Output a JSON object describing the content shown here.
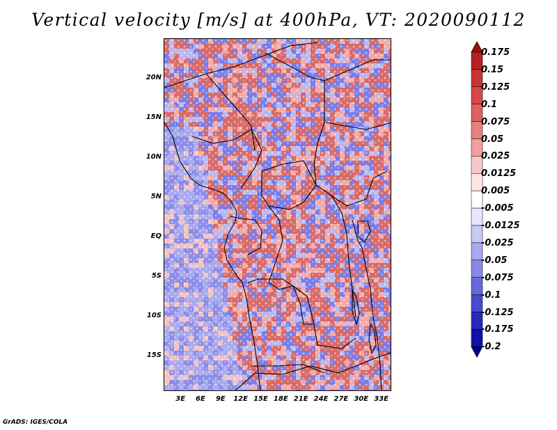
{
  "title": "Vertical velocity [m/s] at 400hPa, VT: 2020090112",
  "credit": "GrADS: IGES/COLA",
  "map": {
    "lat_labels": [
      "20N",
      "15N",
      "10N",
      "5N",
      "EQ",
      "5S",
      "10S",
      "15S"
    ],
    "lat_values": [
      20,
      15,
      10,
      5,
      0,
      -5,
      -10,
      -15
    ],
    "lon_labels": [
      "3E",
      "6E",
      "9E",
      "12E",
      "15E",
      "18E",
      "21E",
      "24E",
      "27E",
      "30E",
      "33E"
    ],
    "lon_values": [
      3,
      6,
      9,
      12,
      15,
      18,
      21,
      24,
      27,
      30,
      33
    ],
    "lon_range": [
      0.5,
      34.5
    ],
    "lat_range": [
      -19.5,
      25
    ]
  },
  "colorbar": {
    "labels": [
      "0.175",
      "0.15",
      "0.125",
      "0.1",
      "0.075",
      "0.05",
      "0.025",
      "0.0125",
      "0.005",
      "-0.005",
      "-0.0125",
      "-0.025",
      "-0.05",
      "-0.075",
      "-0.1",
      "-0.125",
      "-0.175",
      "-0.2"
    ],
    "colors": [
      "#a01010",
      "#b82020",
      "#c83434",
      "#d84848",
      "#e06060",
      "#e88080",
      "#f0a0a0",
      "#f8c8c8",
      "#fde6e6",
      "#ffffff",
      "#e6e6fc",
      "#c8c8f6",
      "#a8a8f0",
      "#8888e8",
      "#6868dc",
      "#4848d0",
      "#2828c0",
      "#1010a8",
      "#000090"
    ]
  },
  "colors": {
    "land_pos": "#d86a6a",
    "land_neg": "#7c7ce6",
    "ocean_neg": "#a9a9ee",
    "border": "#000000"
  }
}
